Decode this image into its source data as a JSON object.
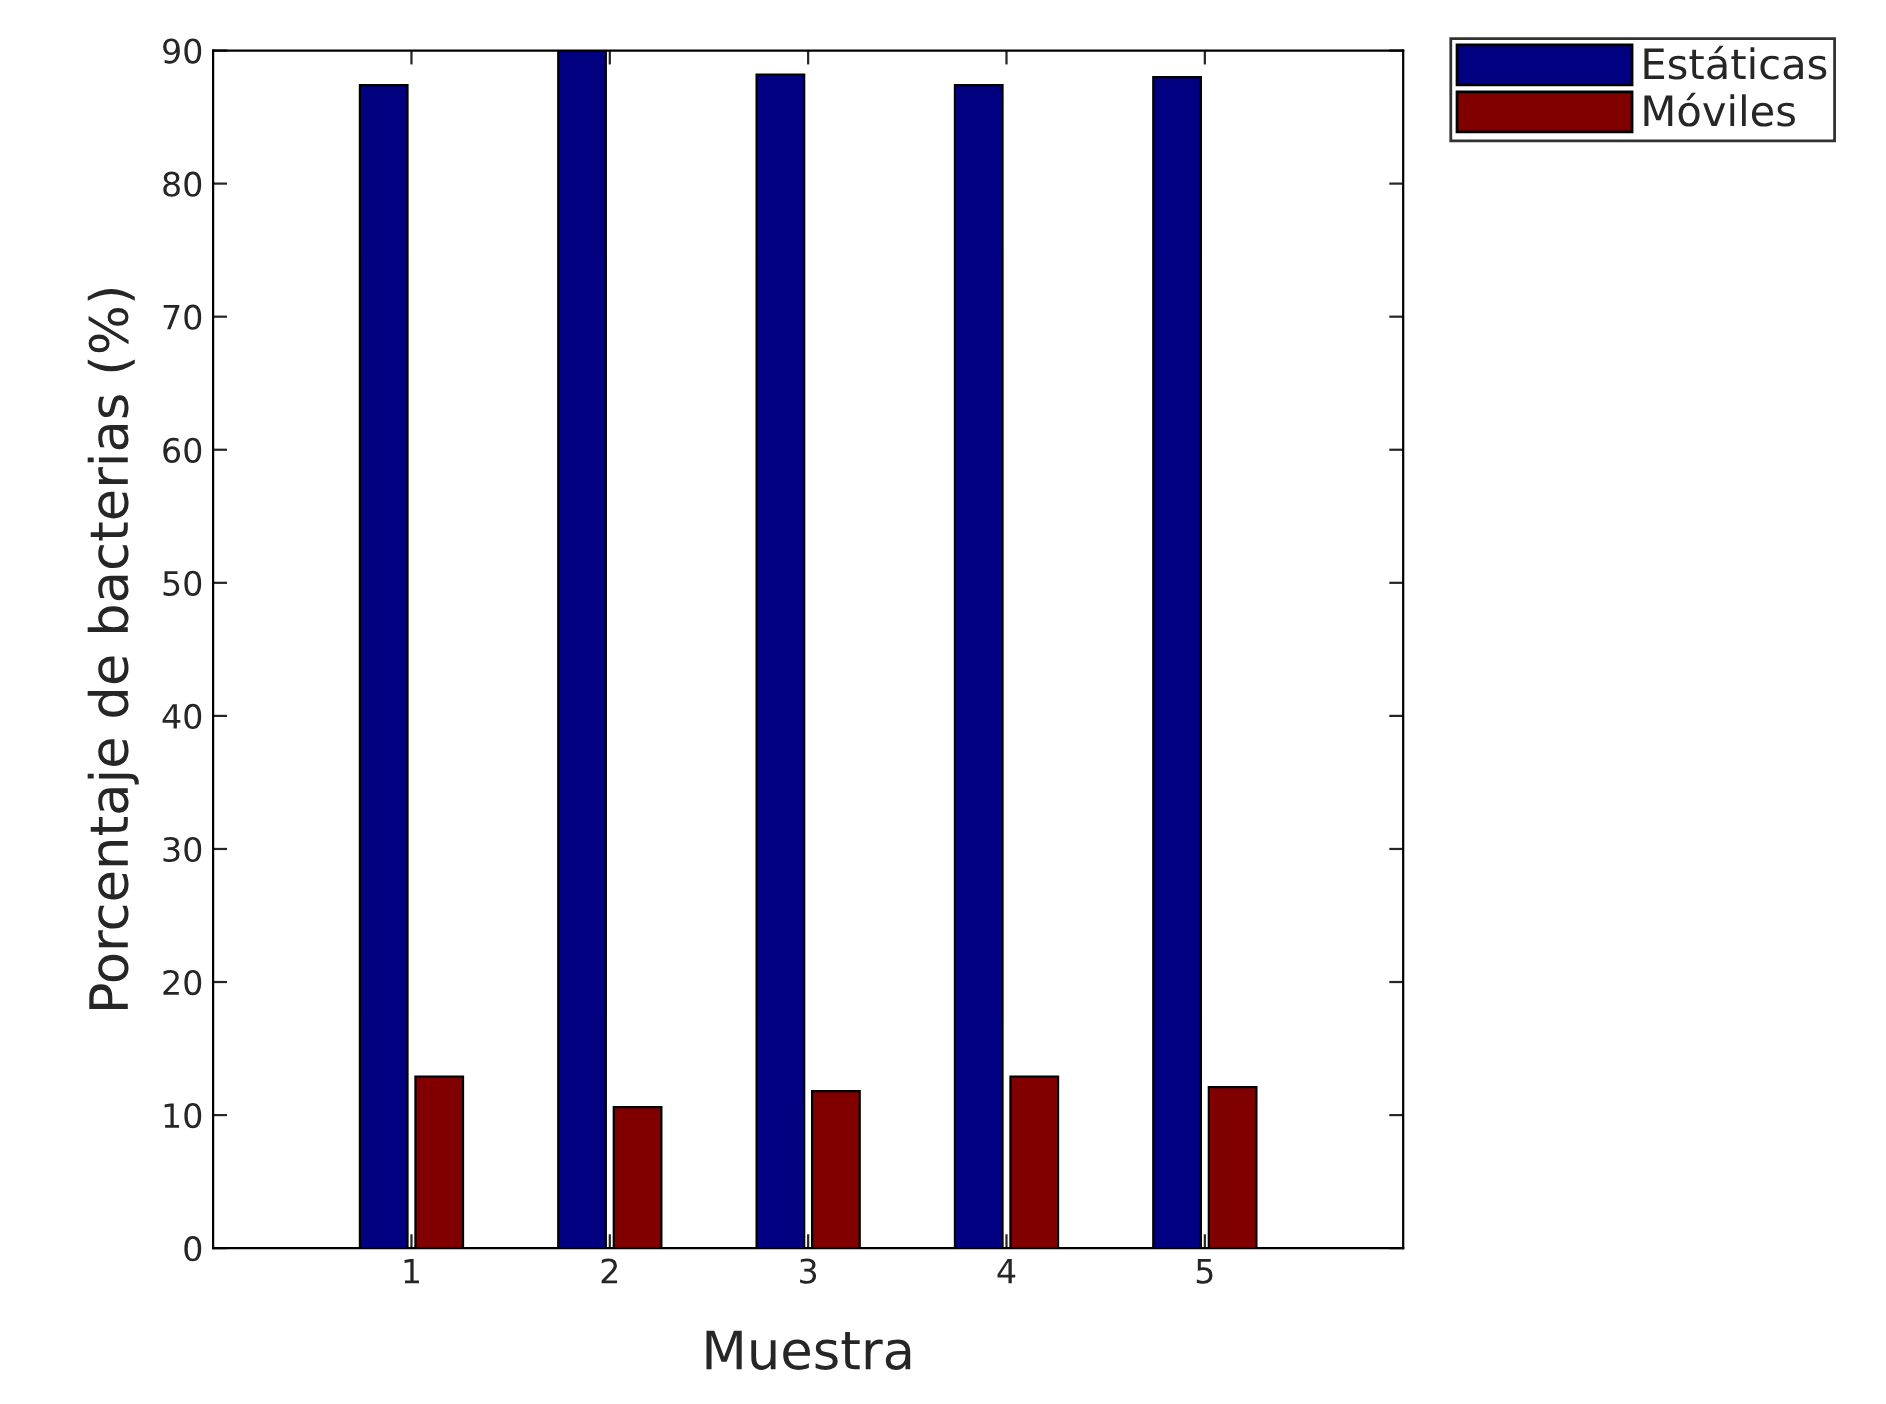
{
  "chart_data": {
    "type": "bar",
    "xlabel": "Muestra",
    "ylabel": "Porcentaje de bacterias (%)",
    "categories": [
      "1",
      "2",
      "3",
      "4",
      "5"
    ],
    "series": [
      {
        "name": "Estáticas",
        "color": "#000080",
        "values": [
          87.4,
          90,
          88.2,
          87.4,
          88
        ]
      },
      {
        "name": "Móviles",
        "color": "#800000",
        "values": [
          12.9,
          10.6,
          11.8,
          12.9,
          12.1
        ]
      }
    ],
    "ylim": [
      0,
      90
    ],
    "yticks": [
      0,
      10,
      20,
      30,
      40,
      50,
      60,
      70,
      80,
      90
    ],
    "grid": false,
    "legend": "top right"
  }
}
